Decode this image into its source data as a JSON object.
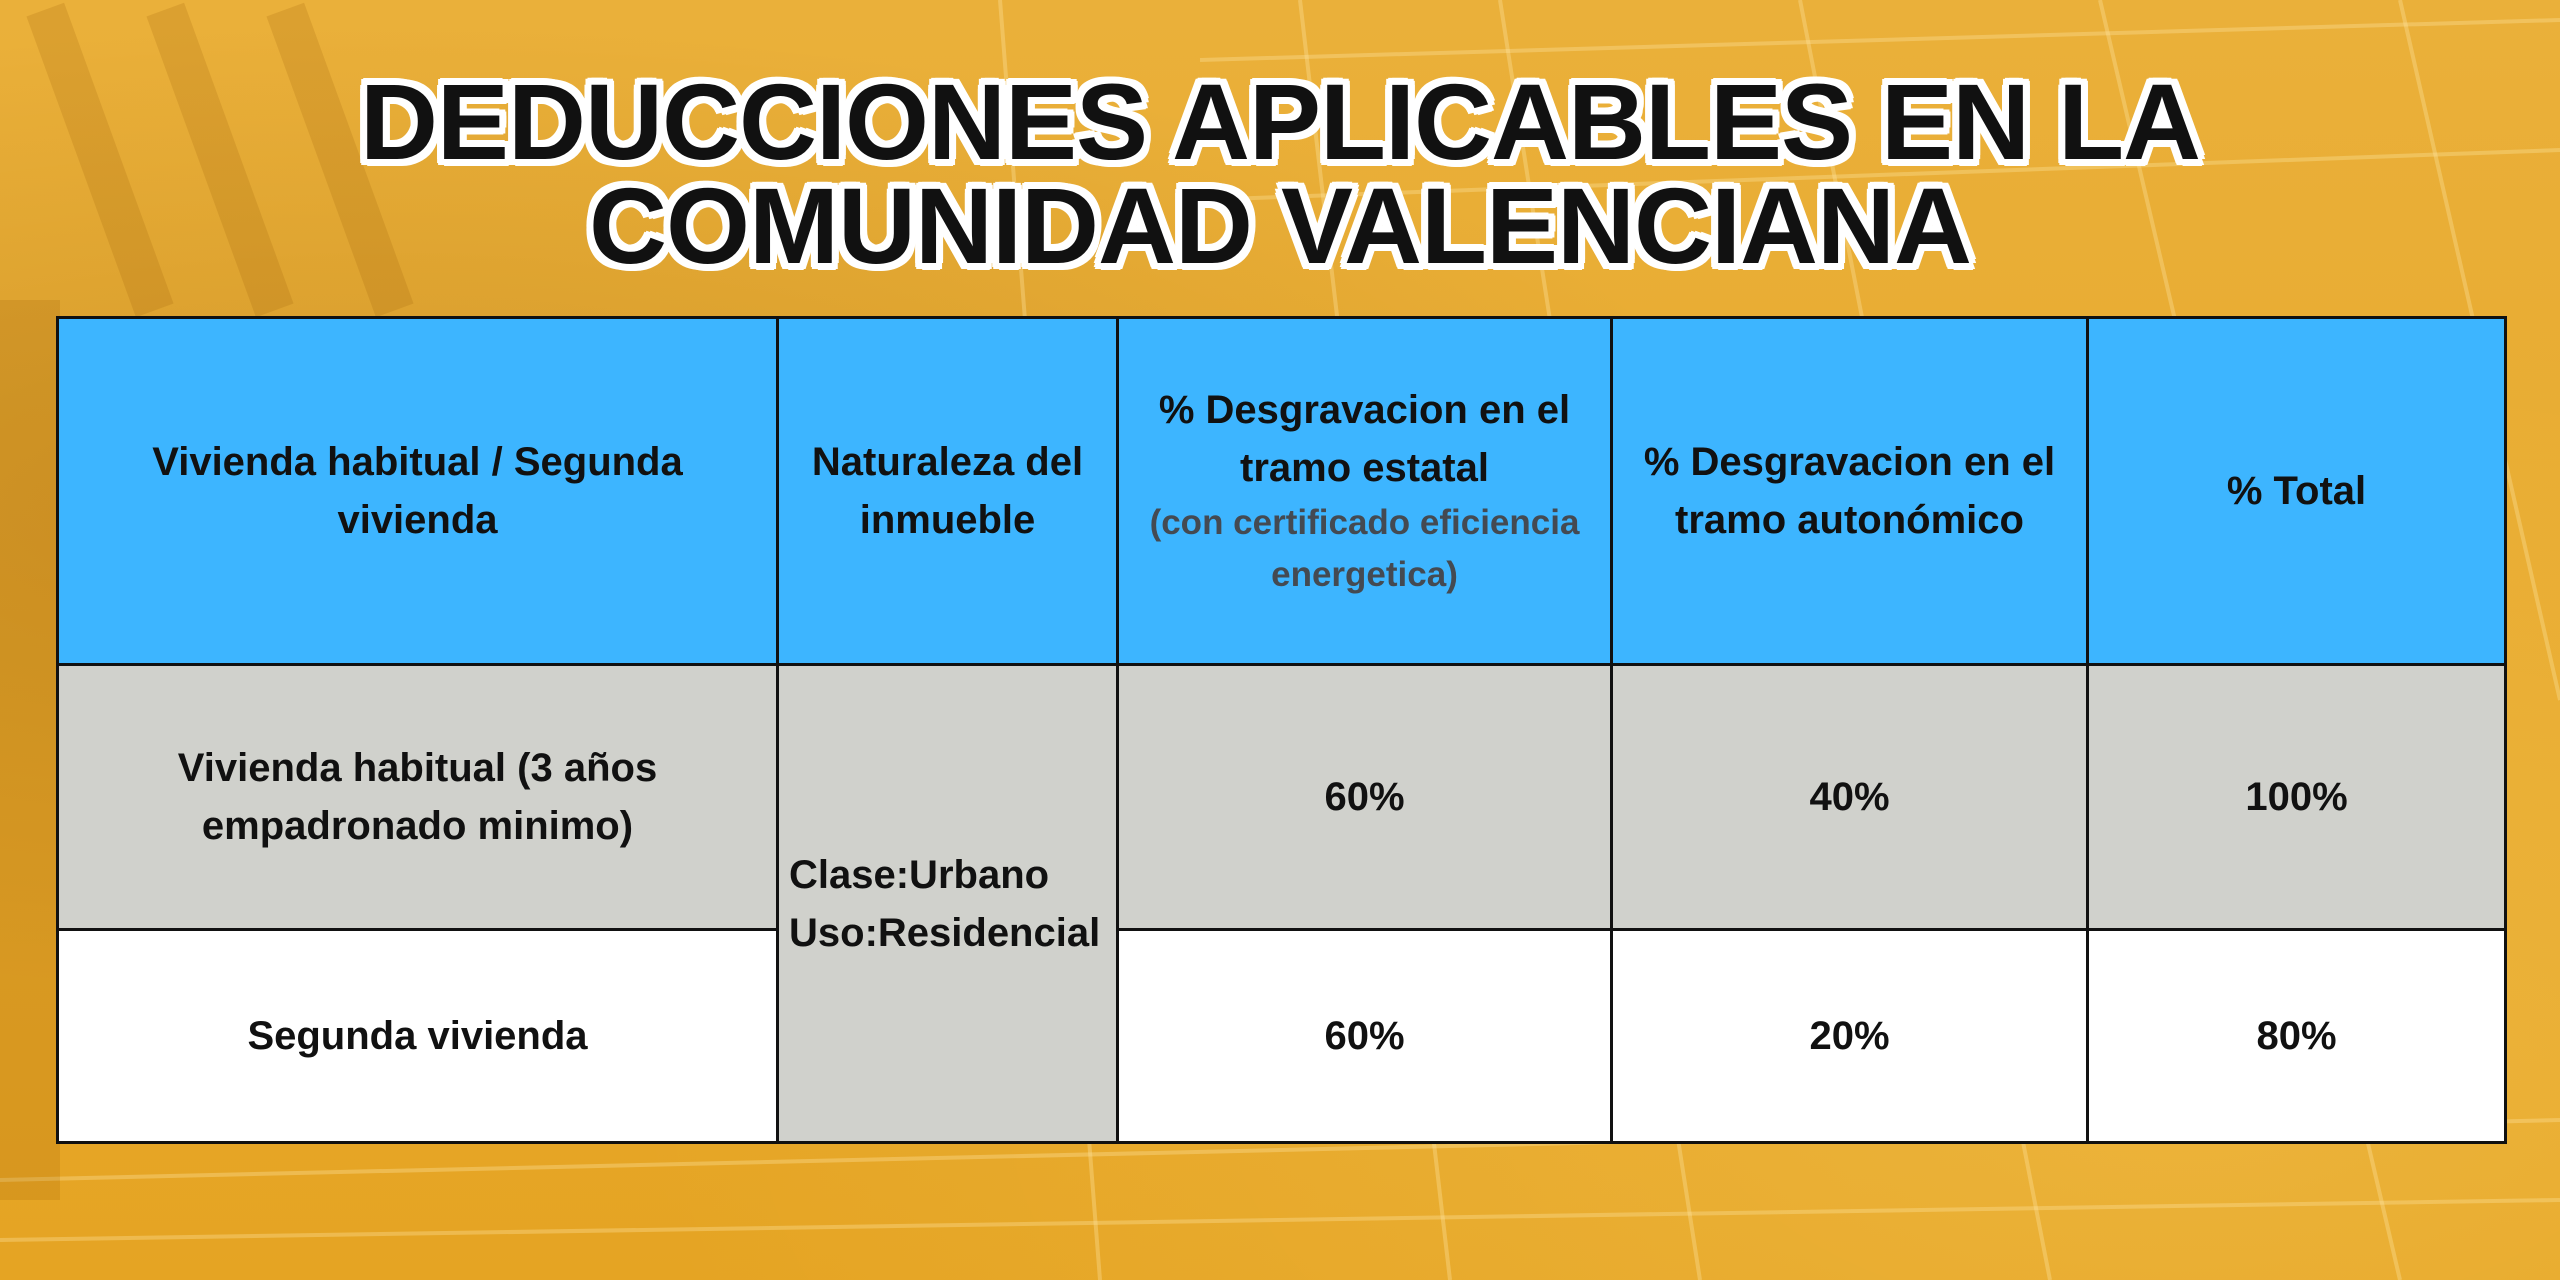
{
  "title": {
    "line1": "DEDUCCIONES APLICABLES EN LA",
    "line2": "COMUNIDAD VALENCIANA"
  },
  "colors": {
    "background": "#e8ab28",
    "header_bg": "#3db5ff",
    "row_gray": "#d0d1cc",
    "row_white": "#ffffff",
    "text": "#111111"
  },
  "table": {
    "headers": {
      "vivienda": "Vivienda habitual / Segunda vivienda",
      "naturaleza": "Naturaleza del inmueble",
      "estatal_main": "% Desgravacion en el tramo estatal",
      "estatal_sub": "(con certificado eficiencia energetica)",
      "autonomico": "% Desgravacion en el tramo autonómico",
      "total": "% Total"
    },
    "naturaleza": {
      "clase": "Clase:Urbano",
      "uso": "Uso:Residencial"
    },
    "rows": [
      {
        "vivienda": "Vivienda habitual (3 años empadronado minimo)",
        "estatal": "60%",
        "autonomico": "40%",
        "total": "100%"
      },
      {
        "vivienda": "Segunda vivienda",
        "estatal": "60%",
        "autonomico": "20%",
        "total": "80%"
      }
    ]
  }
}
